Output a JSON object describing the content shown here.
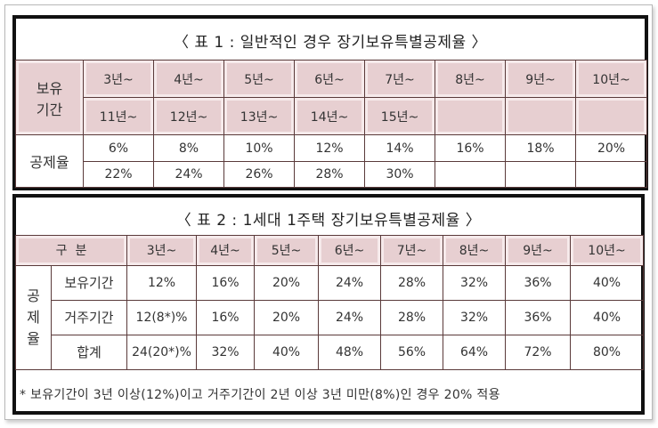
{
  "table1": {
    "title": "〈 표 1 : 일반적인 경우 장기보유특별공제율 〉",
    "period_label": "보유\n기간",
    "rate_label": "공제율",
    "periods_row1": [
      "3년~",
      "4년~",
      "5년~",
      "6년~",
      "7년~",
      "8년~",
      "9년~",
      "10년~"
    ],
    "periods_row2": [
      "11년~",
      "12년~",
      "13년~",
      "14년~",
      "15년~",
      "",
      "",
      ""
    ],
    "rates_row1": [
      "6%",
      "8%",
      "10%",
      "12%",
      "14%",
      "16%",
      "18%",
      "20%"
    ],
    "rates_row2": [
      "22%",
      "24%",
      "26%",
      "28%",
      "30%",
      "",
      "",
      ""
    ]
  },
  "table2": {
    "title": "〈 표 2 : 1세대 1주택 장기보유특별공제율 〉",
    "header_label": "구  분",
    "periods": [
      "3년~",
      "4년~",
      "5년~",
      "6년~",
      "7년~",
      "8년~",
      "9년~",
      "10년~"
    ],
    "group_label": "공\n제\n율",
    "rows": [
      {
        "label": "보유기간",
        "values": [
          "12%",
          "16%",
          "20%",
          "24%",
          "28%",
          "32%",
          "36%",
          "40%"
        ]
      },
      {
        "label": "거주기간",
        "values": [
          "12(8*)%",
          "16%",
          "20%",
          "24%",
          "28%",
          "32%",
          "36%",
          "40%"
        ]
      },
      {
        "label": "합계",
        "values": [
          "24(20*)%",
          "32%",
          "40%",
          "48%",
          "56%",
          "64%",
          "72%",
          "80%"
        ]
      }
    ],
    "footnote": "* 보유기간이 3년 이상(12%)이고 거주기간이 2년 이상 3년 미만(8%)인 경우 20% 적용"
  }
}
